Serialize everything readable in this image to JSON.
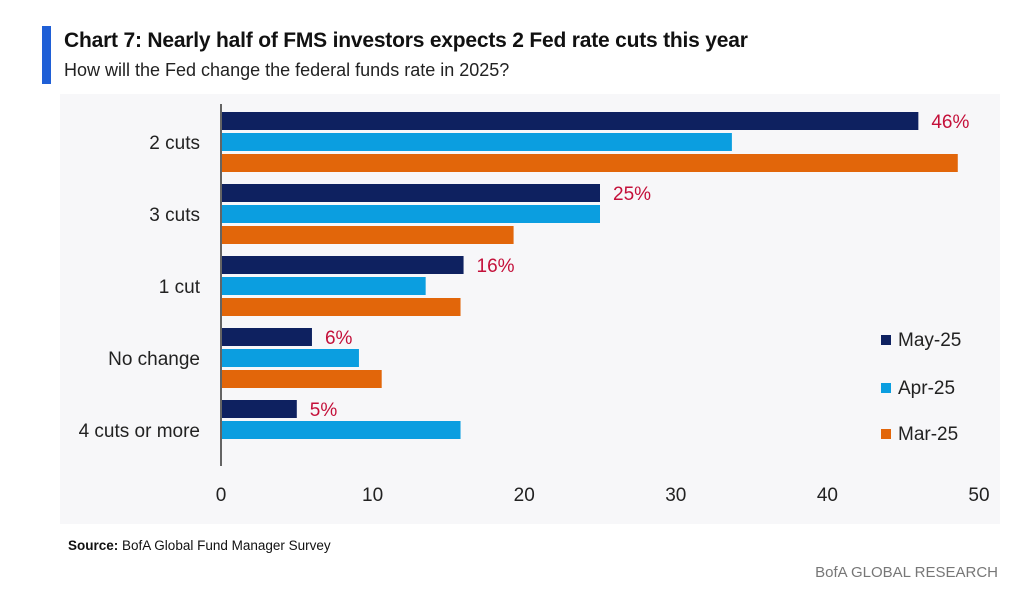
{
  "header": {
    "title": "Chart 7: Nearly half of FMS investors expects 2 Fed rate cuts this year",
    "subtitle": "How will the Fed change the federal funds rate in 2025?"
  },
  "footer": {
    "source_label": "Source:",
    "source_text": "BofA Global Fund Manager Survey",
    "brand": "BofA GLOBAL RESEARCH"
  },
  "colors": {
    "accent": "#1f5fd6",
    "may": "#0e2160",
    "apr": "#0b9ee0",
    "mar": "#e2660a",
    "label_red": "#c4103a"
  },
  "chart_data": {
    "type": "bar",
    "orientation": "horizontal",
    "title": "Chart 7: Nearly half of FMS investors expects 2 Fed rate cuts this year",
    "subtitle": "How will the Fed change the federal funds rate in 2025?",
    "categories": [
      "2 cuts",
      "3 cuts",
      "1 cut",
      "No change",
      "4 cuts or more"
    ],
    "series": [
      {
        "name": "May-25",
        "values": [
          46,
          25,
          16,
          6,
          5
        ],
        "labels": [
          "46%",
          "25%",
          "16%",
          "6%",
          "5%"
        ]
      },
      {
        "name": "Apr-25",
        "values": [
          33.7,
          25,
          13.5,
          9.1,
          15.8
        ]
      },
      {
        "name": "Mar-25",
        "values": [
          48.6,
          19.3,
          15.8,
          10.6,
          null
        ]
      }
    ],
    "xlim": [
      0,
      50
    ],
    "xticks": [
      "0",
      "10",
      "20",
      "30",
      "40",
      "50"
    ],
    "xlabel": "",
    "ylabel": "",
    "grid": false,
    "legend_position": "right"
  }
}
